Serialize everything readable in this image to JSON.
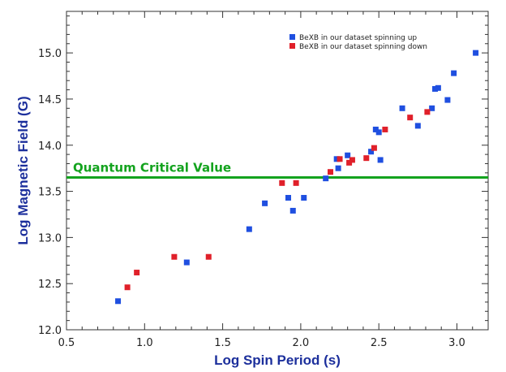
{
  "chart_data": {
    "type": "scatter",
    "xlabel": "Log Spin Period (s)",
    "ylabel": "Log Magnetic Field (G)",
    "xlim": [
      0.5,
      3.2
    ],
    "ylim": [
      12.0,
      15.45
    ],
    "x_ticks": [
      "0.5",
      "1.0",
      "1.5",
      "2.0",
      "2.5",
      "3.0"
    ],
    "y_ticks": [
      "12.0",
      "12.5",
      "13.0",
      "13.5",
      "14.0",
      "14.5",
      "15.0"
    ],
    "legend_position": "top-right",
    "series": [
      {
        "name": "BeXB in our dataset spinning up",
        "color": "#1f4fe0",
        "points": [
          [
            0.83,
            12.31
          ],
          [
            1.27,
            12.73
          ],
          [
            1.67,
            13.09
          ],
          [
            1.77,
            13.37
          ],
          [
            1.92,
            13.43
          ],
          [
            1.95,
            13.29
          ],
          [
            2.02,
            13.43
          ],
          [
            2.16,
            13.64
          ],
          [
            2.23,
            13.85
          ],
          [
            2.24,
            13.75
          ],
          [
            2.3,
            13.89
          ],
          [
            2.45,
            13.93
          ],
          [
            2.48,
            14.17
          ],
          [
            2.5,
            14.14
          ],
          [
            2.51,
            13.84
          ],
          [
            2.65,
            14.4
          ],
          [
            2.75,
            14.21
          ],
          [
            2.84,
            14.4
          ],
          [
            2.86,
            14.61
          ],
          [
            2.88,
            14.62
          ],
          [
            2.94,
            14.49
          ],
          [
            2.98,
            14.78
          ],
          [
            3.12,
            15.0
          ]
        ]
      },
      {
        "name": "BeXB in our dataset spinning down",
        "color": "#e0202a",
        "points": [
          [
            0.89,
            12.46
          ],
          [
            0.95,
            12.62
          ],
          [
            1.19,
            12.79
          ],
          [
            1.41,
            12.79
          ],
          [
            1.88,
            13.59
          ],
          [
            1.97,
            13.59
          ],
          [
            2.19,
            13.71
          ],
          [
            2.25,
            13.85
          ],
          [
            2.31,
            13.81
          ],
          [
            2.33,
            13.84
          ],
          [
            2.42,
            13.86
          ],
          [
            2.47,
            13.97
          ],
          [
            2.54,
            14.17
          ],
          [
            2.7,
            14.3
          ],
          [
            2.81,
            14.36
          ]
        ]
      }
    ],
    "reference_line": {
      "label": "Quantum Critical Value",
      "y": 13.65,
      "color": "#13a31e"
    }
  }
}
